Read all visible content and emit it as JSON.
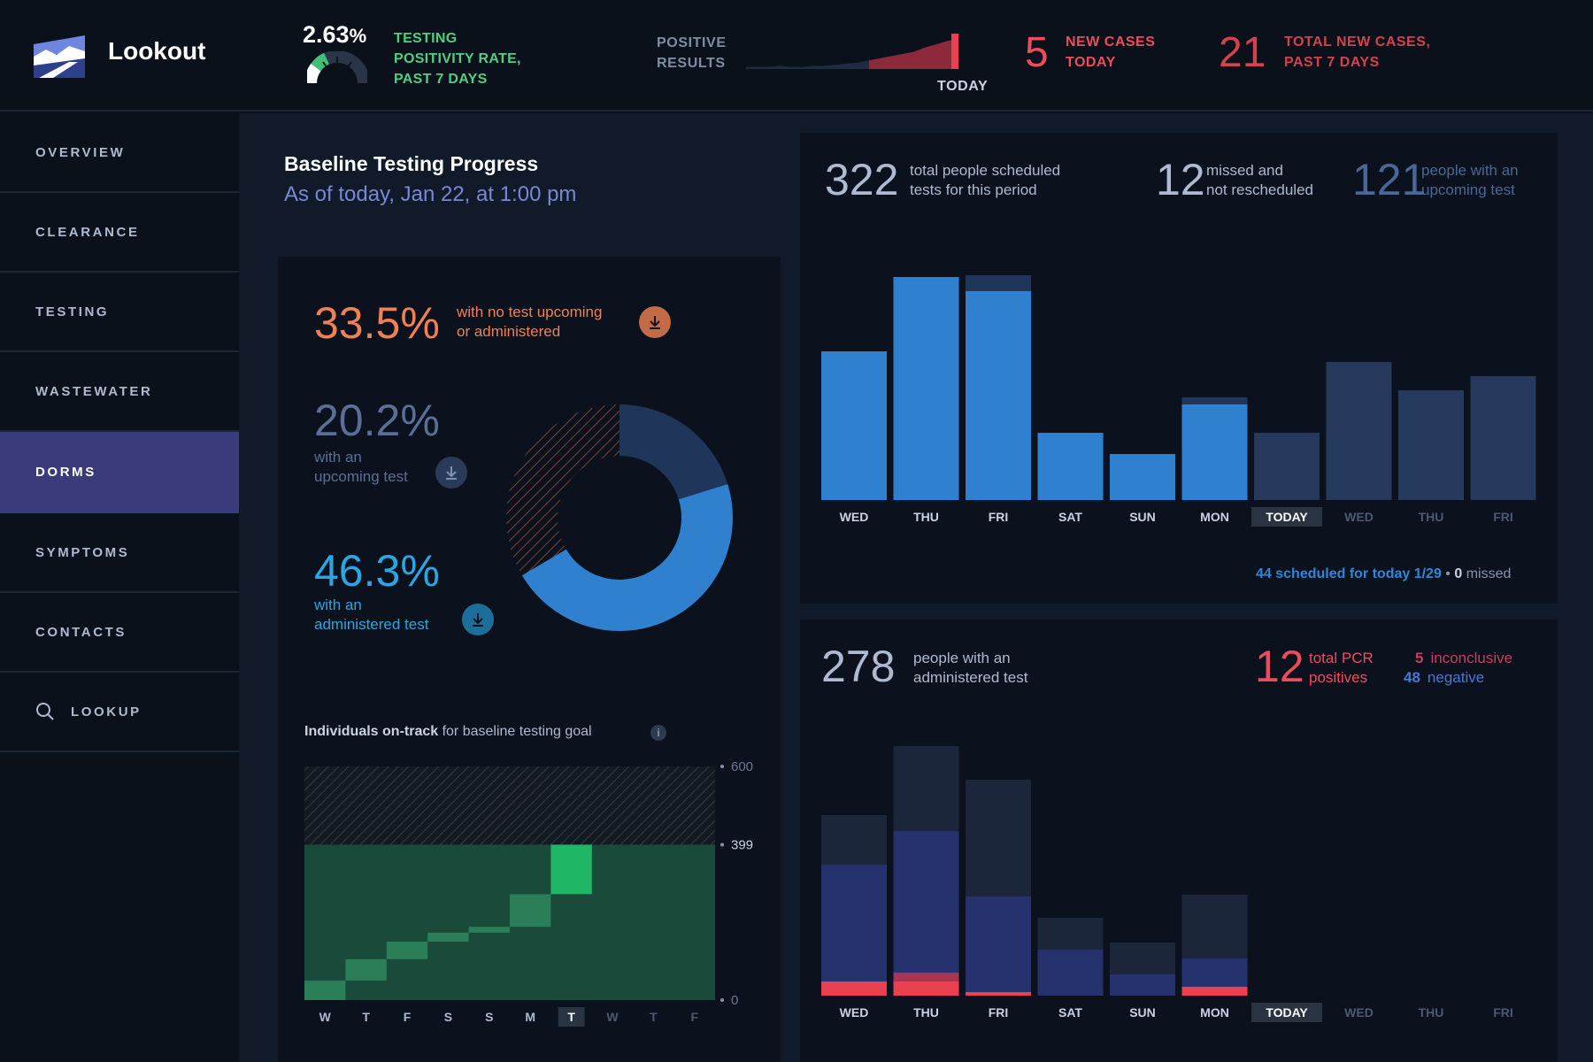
{
  "app": {
    "title": "Lookout"
  },
  "header": {
    "positivity_rate": {
      "value": "2.63",
      "unit": "%",
      "label_lines": [
        "TESTING",
        "POSITIVITY RATE,",
        "PAST 7 DAYS"
      ]
    },
    "positive_results": {
      "label_lines": [
        "POSITIVE",
        "RESULTS"
      ],
      "today_label": "TODAY"
    },
    "new_cases_today": {
      "value": "5",
      "label_lines": [
        "NEW CASES",
        "TODAY"
      ]
    },
    "total_new_cases": {
      "value": "21",
      "label_lines": [
        "TOTAL NEW CASES,",
        "PAST 7 DAYS"
      ]
    },
    "colors": {
      "green": "#4fcf84",
      "red": "#ec4d5c"
    }
  },
  "sidebar": {
    "items": [
      {
        "label": "OVERVIEW",
        "active": false
      },
      {
        "label": "CLEARANCE",
        "active": false
      },
      {
        "label": "TESTING",
        "active": false
      },
      {
        "label": "WASTEWATER",
        "active": false
      },
      {
        "label": "DORMS",
        "active": true
      },
      {
        "label": "SYMPTOMS",
        "active": false
      },
      {
        "label": "CONTACTS",
        "active": false
      },
      {
        "label": "LOOKUP",
        "active": false,
        "icon": "search-icon"
      }
    ]
  },
  "baseline": {
    "title": "Baseline Testing Progress",
    "subtitle": "As of today, Jan 22, at 1:00 pm",
    "stats": [
      {
        "value": "33.5%",
        "text_lines": [
          "with no test upcoming",
          "or administered"
        ],
        "color": "#f08055",
        "icon": "download-icon"
      },
      {
        "value": "20.2%",
        "text_lines": [
          "with an",
          "upcoming test"
        ],
        "color": "#5b6f96",
        "icon": "download-icon"
      },
      {
        "value": "46.3%",
        "text_lines": [
          "with an",
          "administered test"
        ],
        "color": "#2aa6e0",
        "icon": "download-icon"
      }
    ],
    "ontrack": {
      "title_bold": "Individuals on-track",
      "title_rest": " for baseline testing goal",
      "info": "i"
    }
  },
  "scheduled": {
    "stats": [
      {
        "value": "322",
        "text_lines": [
          "total people scheduled",
          "tests for this period"
        ]
      },
      {
        "value": "12",
        "text_lines": [
          "missed and",
          "not rescheduled"
        ]
      },
      {
        "value": "121",
        "text_lines": [
          "people with an",
          "upcoming test"
        ]
      }
    ],
    "footer": {
      "count": "44",
      "text": " scheduled for ",
      "day": "today 1/29",
      "sep": " • ",
      "missed_count": "0",
      "missed_text": " missed"
    }
  },
  "administered": {
    "count": {
      "value": "278",
      "text_lines": [
        "people with an",
        "administered test"
      ]
    },
    "pcr": {
      "value": "12",
      "text_lines": [
        "total PCR",
        "positives"
      ]
    },
    "inconclusive": {
      "value": "5",
      "label": "inconclusive"
    },
    "negative": {
      "value": "48",
      "label": "negative"
    }
  },
  "chart_data": [
    {
      "id": "scheduled",
      "type": "bar",
      "categories": [
        "WED",
        "THU",
        "FRI",
        "SAT",
        "SUN",
        "MON",
        "TODAY",
        "WED",
        "THU",
        "FRI"
      ],
      "highlight_category": 6,
      "series": [
        {
          "values": [
            42,
            63,
            59,
            19,
            13,
            27,
            0,
            0,
            0,
            0
          ],
          "color": "#2f80cf"
        },
        {
          "values": [
            0,
            0,
            4.5,
            0,
            0,
            2,
            0,
            0,
            0,
            0
          ],
          "color": "#1f355a"
        },
        {
          "values": [
            0,
            0,
            0,
            0,
            0,
            0,
            19,
            39,
            31,
            35
          ],
          "color": "#253a5c"
        }
      ],
      "ylim": [
        0,
        70
      ]
    },
    {
      "id": "administered",
      "type": "bar",
      "categories": [
        "WED",
        "THU",
        "FRI",
        "SAT",
        "SUN",
        "MON",
        "TODAY",
        "WED",
        "THU",
        "FRI"
      ],
      "highlight_category": 6,
      "series": [
        {
          "values": [
            4,
            4,
            1,
            0,
            0,
            2.5,
            0,
            0,
            0,
            0
          ],
          "color": "#e9414f"
        },
        {
          "values": [
            0,
            2.5,
            0,
            0,
            0,
            0,
            0,
            0,
            0,
            0
          ],
          "color": "#a83653"
        },
        {
          "values": [
            33,
            40,
            27,
            13,
            6,
            8,
            0,
            0,
            0,
            0
          ],
          "color": "#26326e"
        },
        {
          "values": [
            14,
            24,
            33,
            9,
            9,
            18,
            0,
            0,
            0,
            0
          ],
          "color": "#1b263b"
        }
      ],
      "ylim": [
        0,
        70
      ]
    },
    {
      "id": "ontrack",
      "type": "area",
      "categories": [
        "W",
        "T",
        "F",
        "S",
        "S",
        "M",
        "T",
        "W",
        "T",
        "F"
      ],
      "highlight_category": 6,
      "values": [
        50,
        105,
        150,
        173,
        188,
        272,
        399,
        399,
        399,
        399
      ],
      "steps": [
        {
          "from": 0,
          "to": 50
        },
        {
          "from": 50,
          "to": 105
        },
        {
          "from": 105,
          "to": 150
        },
        {
          "from": 150,
          "to": 173
        },
        {
          "from": 173,
          "to": 188
        },
        {
          "from": 188,
          "to": 272
        },
        {
          "from": 272,
          "to": 399
        }
      ],
      "goal": 600,
      "y_ticks": [
        "600",
        "399",
        "0"
      ],
      "ylim": [
        0,
        600
      ]
    },
    {
      "id": "baseline-donut",
      "type": "pie",
      "categories": [
        "with no test upcoming or administered",
        "with an upcoming test",
        "with an administered test"
      ],
      "values": [
        33.5,
        20.2,
        46.3
      ]
    },
    {
      "id": "positive-results-spark",
      "type": "area",
      "values": [
        2,
        2,
        2,
        3,
        2,
        2,
        3,
        3,
        4,
        5,
        6,
        8,
        10,
        12,
        14,
        16,
        20,
        23,
        26,
        28
      ]
    }
  ]
}
